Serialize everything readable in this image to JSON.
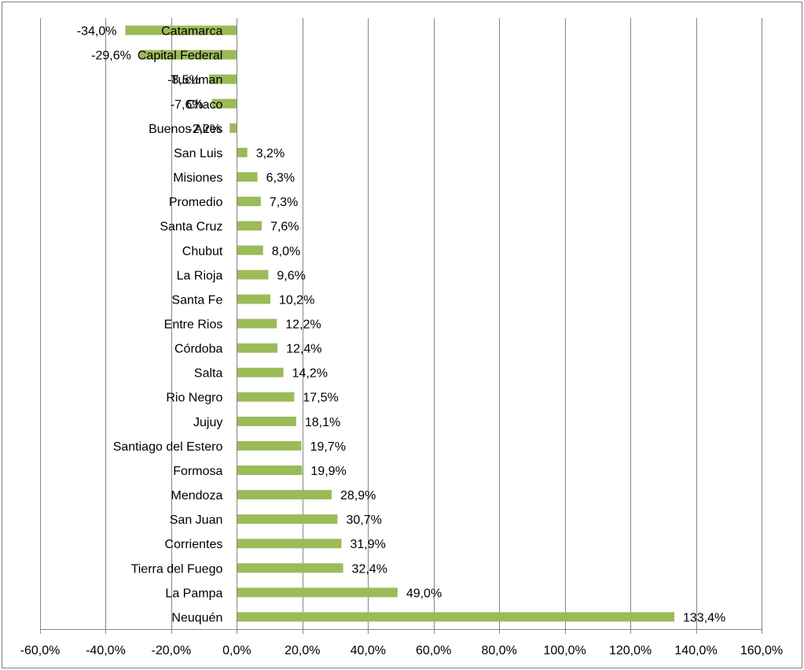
{
  "chart_data": {
    "type": "bar",
    "orientation": "horizontal",
    "title": "",
    "xlabel": "",
    "ylabel": "",
    "categories": [
      "Catamarca",
      "Capital Federal",
      "Tucuman",
      "Chaco",
      "Buenos Aires",
      "San Luis",
      "Misiones",
      "Promedio",
      "Santa Cruz",
      "Chubut",
      "La Rioja",
      "Santa Fe",
      "Entre Rios",
      "Córdoba",
      "Salta",
      "Rio Negro",
      "Jujuy",
      "Santiago del Estero",
      "Formosa",
      "Mendoza",
      "San Juan",
      "Corrientes",
      "Tierra del Fuego",
      "La Pampa",
      "Neuquén"
    ],
    "values": [
      -34.0,
      -29.6,
      -8.5,
      -7.6,
      -2.2,
      3.2,
      6.3,
      7.3,
      7.6,
      8.0,
      9.6,
      10.2,
      12.2,
      12.4,
      14.2,
      17.5,
      18.1,
      19.7,
      19.9,
      28.9,
      30.7,
      31.9,
      32.4,
      49.0,
      133.4
    ],
    "value_labels": [
      "-34,0%",
      "-29,6%",
      "-8,5%",
      "-7,6%",
      "-2,2%",
      "3,2%",
      "6,3%",
      "7,3%",
      "7,6%",
      "8,0%",
      "9,6%",
      "10,2%",
      "12,2%",
      "12,4%",
      "14,2%",
      "17,5%",
      "18,1%",
      "19,7%",
      "19,9%",
      "28,9%",
      "30,7%",
      "31,9%",
      "32,4%",
      "49,0%",
      "133,4%"
    ],
    "xlim": [
      -60,
      160
    ],
    "x_ticks": [
      -60,
      -40,
      -20,
      0,
      20,
      40,
      60,
      80,
      100,
      120,
      140,
      160
    ],
    "x_tick_labels": [
      "-60,0%",
      "-40,0%",
      "-20,0%",
      "0,0%",
      "20,0%",
      "40,0%",
      "60,0%",
      "80,0%",
      "100,0%",
      "120,0%",
      "140,0%",
      "160,0%"
    ],
    "grid": "vertical",
    "legend": "none",
    "colors": {
      "bar": "#9bbb59",
      "grid": "#868686",
      "axis": "#868686",
      "border": "#7f7f7f"
    }
  }
}
